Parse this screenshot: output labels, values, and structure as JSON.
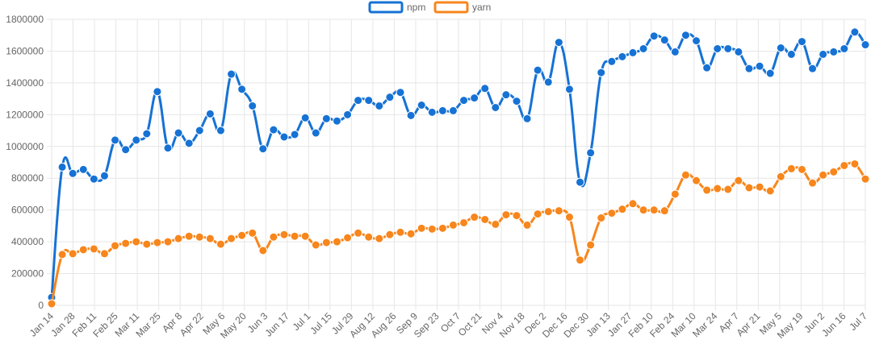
{
  "chart_data": {
    "type": "line",
    "ylim": [
      0,
      1800000
    ],
    "y_ticks": [
      "0",
      "200000",
      "400000",
      "600000",
      "800000",
      "1000000",
      "1200000",
      "1400000",
      "1600000",
      "1800000"
    ],
    "x_tick_labels": [
      "Jan 14",
      "Jan 28",
      "Feb 11",
      "Feb 25",
      "Mar 11",
      "Mar 25",
      "Apr 8",
      "Apr 22",
      "May 6",
      "May 20",
      "Jun 3",
      "Jun 17",
      "Jul 1",
      "Jul 15",
      "Jul 29",
      "Aug 12",
      "Aug 26",
      "Sep 9",
      "Sep 23",
      "Oct 7",
      "Oct 21",
      "Nov 4",
      "Nov 18",
      "Dec 2",
      "Dec 16",
      "Dec 30",
      "Jan 13",
      "Jan 27",
      "Feb 10",
      "Feb 24",
      "Mar 10",
      "Mar 24",
      "Apr 7",
      "Apr 21",
      "May 5",
      "May 19",
      "Jun 2",
      "Jun 16",
      "Jul 7"
    ],
    "grid": true,
    "legend_position": "top-center",
    "series": [
      {
        "name": "npm",
        "color": "#1672d4",
        "values": [
          50000,
          870000,
          830000,
          855000,
          795000,
          815000,
          1040000,
          980000,
          1040000,
          1080000,
          1345000,
          990000,
          1085000,
          1020000,
          1100000,
          1205000,
          1100000,
          1455000,
          1360000,
          1255000,
          985000,
          1105000,
          1060000,
          1075000,
          1180000,
          1085000,
          1175000,
          1160000,
          1200000,
          1290000,
          1290000,
          1255000,
          1310000,
          1340000,
          1195000,
          1260000,
          1215000,
          1225000,
          1225000,
          1290000,
          1305000,
          1365000,
          1245000,
          1325000,
          1285000,
          1175000,
          1480000,
          1405000,
          1655000,
          1360000,
          775000,
          960000,
          1465000,
          1535000,
          1565000,
          1590000,
          1615000,
          1695000,
          1670000,
          1595000,
          1700000,
          1665000,
          1495000,
          1615000,
          1615000,
          1595000,
          1490000,
          1505000,
          1460000,
          1620000,
          1580000,
          1660000,
          1490000,
          1580000,
          1595000,
          1615000,
          1720000,
          1640000
        ]
      },
      {
        "name": "yarn",
        "color": "#f7861c",
        "values": [
          10000,
          320000,
          325000,
          350000,
          355000,
          325000,
          375000,
          390000,
          400000,
          385000,
          395000,
          400000,
          420000,
          435000,
          430000,
          420000,
          385000,
          420000,
          440000,
          455000,
          345000,
          430000,
          445000,
          435000,
          435000,
          380000,
          395000,
          400000,
          425000,
          455000,
          430000,
          420000,
          445000,
          460000,
          450000,
          485000,
          480000,
          485000,
          505000,
          520000,
          555000,
          540000,
          510000,
          570000,
          565000,
          505000,
          575000,
          590000,
          595000,
          555000,
          285000,
          380000,
          550000,
          580000,
          605000,
          640000,
          600000,
          600000,
          595000,
          700000,
          820000,
          785000,
          725000,
          735000,
          730000,
          785000,
          740000,
          745000,
          720000,
          810000,
          860000,
          855000,
          770000,
          820000,
          840000,
          880000,
          890000,
          795000
        ]
      }
    ]
  }
}
